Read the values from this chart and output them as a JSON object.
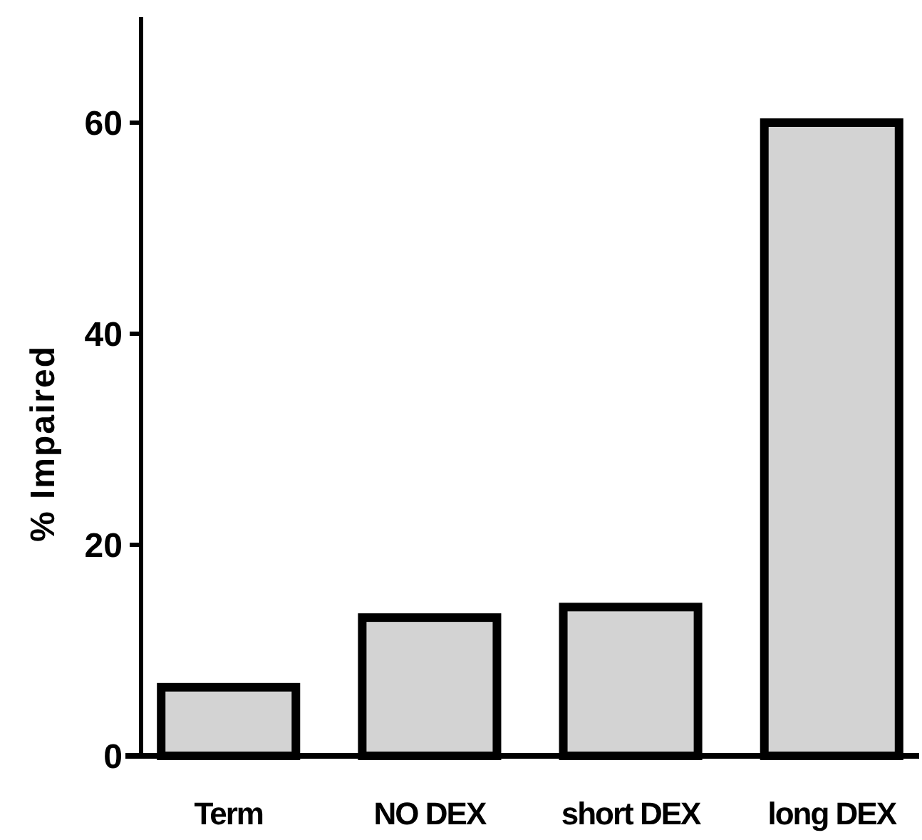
{
  "chart_data": {
    "type": "bar",
    "ylabel": "% Impaired",
    "categories": [
      "Term",
      "NO DEX",
      "short DEX",
      "long DEX"
    ],
    "values": [
      6.5,
      13.1,
      14.1,
      60
    ],
    "color": "#d3d3d3",
    "ylim": [
      0,
      70
    ],
    "yticks": [
      0,
      20,
      40,
      60
    ],
    "grid": false
  }
}
